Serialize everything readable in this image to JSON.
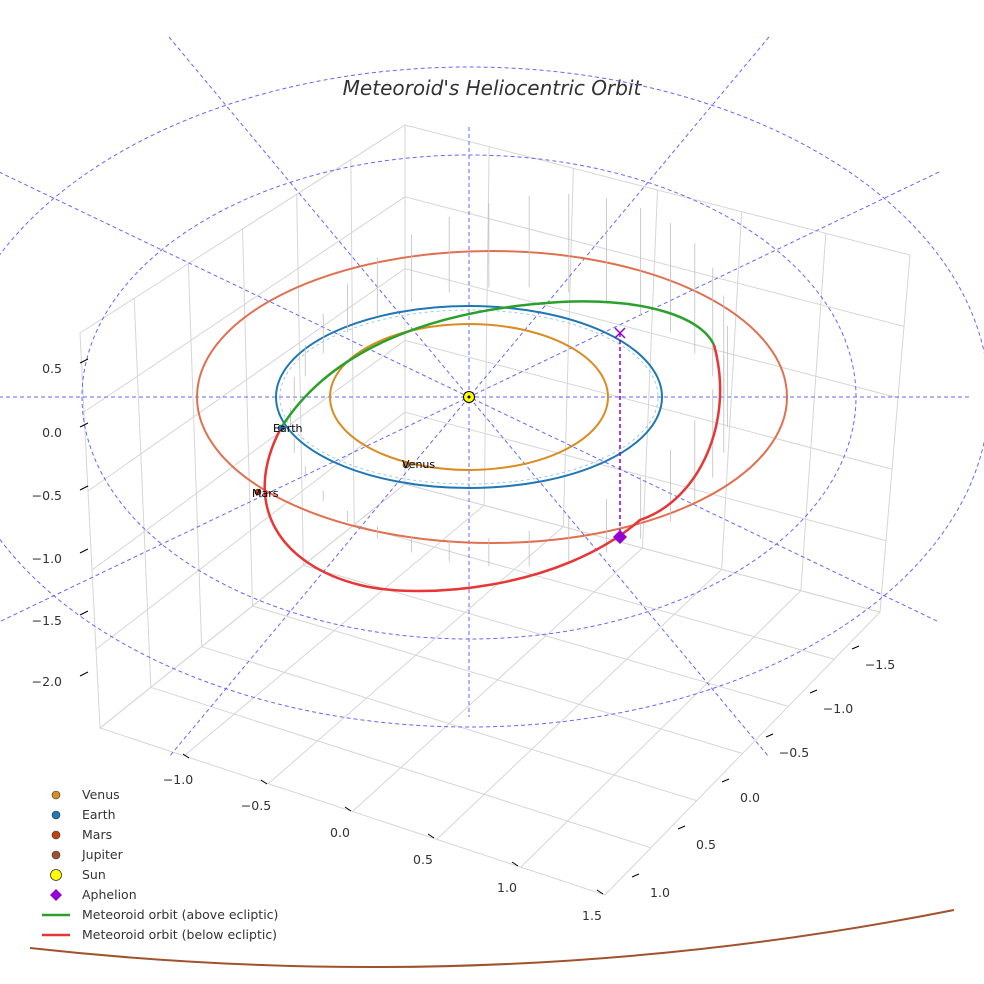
{
  "chart_data": {
    "type": "line",
    "projection": "3d",
    "title": "Meteoroid's Heliocentric Orbit",
    "axes": {
      "x_ticks": [
        "−1.0",
        "−0.5",
        "0.0",
        "0.5",
        "1.0",
        "1.5"
      ],
      "y_ticks": [
        "−1.5",
        "−1.0",
        "−0.5",
        "0.0",
        "0.5",
        "1.0"
      ],
      "z_ticks": [
        "0.5",
        "0.0",
        "−0.5",
        "−1.0",
        "−1.5",
        "−2.0"
      ],
      "x_range": [
        -1.3,
        1.5
      ],
      "y_range": [
        -1.8,
        1.2
      ],
      "z_range": [
        -2.3,
        0.8
      ]
    },
    "bodies": [
      {
        "name": "Venus",
        "orbit_radius_au": 0.72,
        "color": "#d98c22",
        "label": "Venus"
      },
      {
        "name": "Earth",
        "orbit_radius_au": 1.0,
        "color": "#1f77b4",
        "label": "Earth"
      },
      {
        "name": "Mars",
        "orbit_radius_au": 1.52,
        "color": "#c1440e",
        "label": "Mars"
      },
      {
        "name": "Jupiter",
        "orbit_radius_au": 5.2,
        "color": "#a0522d"
      },
      {
        "name": "Sun",
        "color": "#ffff00"
      }
    ],
    "meteoroid_orbit": {
      "above_color": "#2ca02c",
      "below_color": "#e83535",
      "aphelion_color": "#9400d3"
    },
    "reference_circles_color": "#6666ff",
    "legend": [
      {
        "label": "Venus",
        "marker": "circle",
        "color": "#d98c22"
      },
      {
        "label": "Earth",
        "marker": "circle",
        "color": "#1f77b4"
      },
      {
        "label": "Mars",
        "marker": "circle",
        "color": "#c1440e"
      },
      {
        "label": "Jupiter",
        "marker": "circle",
        "color": "#a0522d"
      },
      {
        "label": "Sun",
        "marker": "circle-big",
        "color": "#ffff00"
      },
      {
        "label": "Aphelion",
        "marker": "diamond",
        "color": "#9400d3"
      },
      {
        "label": "Meteoroid orbit (above ecliptic)",
        "marker": "line",
        "color": "#2ca02c"
      },
      {
        "label": "Meteoroid orbit (below ecliptic)",
        "marker": "line",
        "color": "#e83535"
      }
    ]
  }
}
